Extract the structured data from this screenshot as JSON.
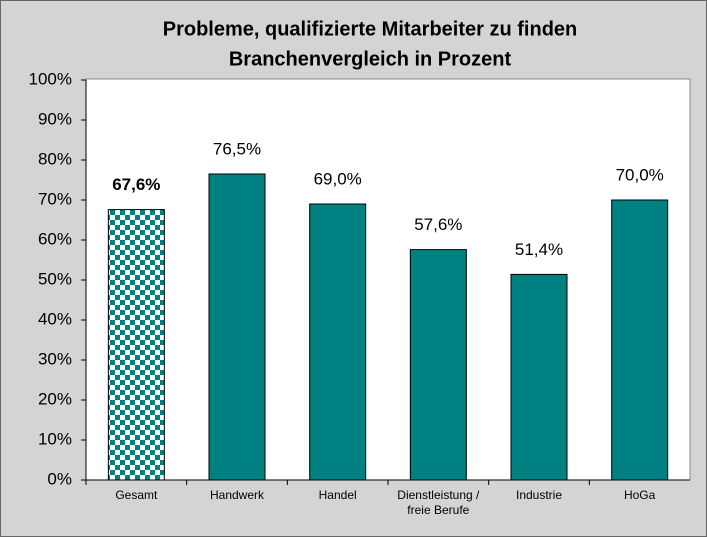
{
  "chart_data": {
    "type": "bar",
    "title": "Probleme, qualifizierte Mitarbeiter zu finden",
    "subtitle": "Branchenvergleich in Prozent",
    "categories": [
      "Gesamt",
      "Handwerk",
      "Handel",
      "Dienstleistung / freie Berufe",
      "Industrie",
      "HoGa"
    ],
    "values": [
      67.6,
      76.5,
      69.0,
      57.6,
      51.4,
      70.0
    ],
    "value_labels": [
      "67,6%",
      "76,5%",
      "69,0%",
      "57,6%",
      "51,4%",
      "70,0%"
    ],
    "color": "#008080",
    "ylim": [
      0,
      100
    ],
    "yticks": [
      {
        "value": 0,
        "label": "0%"
      },
      {
        "value": 10,
        "label": "10%"
      },
      {
        "value": 20,
        "label": "20%"
      },
      {
        "value": 30,
        "label": "30%"
      },
      {
        "value": 40,
        "label": "40%"
      },
      {
        "value": 50,
        "label": "50%"
      },
      {
        "value": 60,
        "label": "60%"
      },
      {
        "value": 70,
        "label": "70%"
      },
      {
        "value": 80,
        "label": "80%"
      },
      {
        "value": 90,
        "label": "90%"
      },
      {
        "value": 100,
        "label": "100%"
      }
    ],
    "grid": false
  }
}
